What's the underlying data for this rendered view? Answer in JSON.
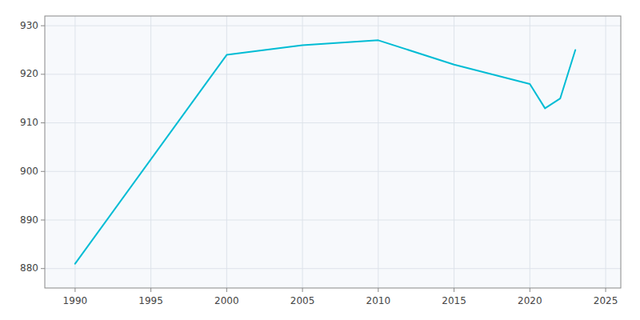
{
  "chart_data": {
    "type": "line",
    "x": [
      1990,
      2000,
      2005,
      2010,
      2015,
      2020,
      2021,
      2022,
      2023
    ],
    "values": [
      881,
      924,
      926,
      927,
      922,
      918,
      913,
      915,
      925
    ],
    "color": "#00BCD4",
    "xlim": [
      1988,
      2026
    ],
    "ylim": [
      876,
      932
    ],
    "xticks": [
      1990,
      1995,
      2000,
      2005,
      2010,
      2015,
      2020,
      2025
    ],
    "yticks": [
      880,
      890,
      900,
      910,
      920,
      930
    ],
    "grid": true
  }
}
